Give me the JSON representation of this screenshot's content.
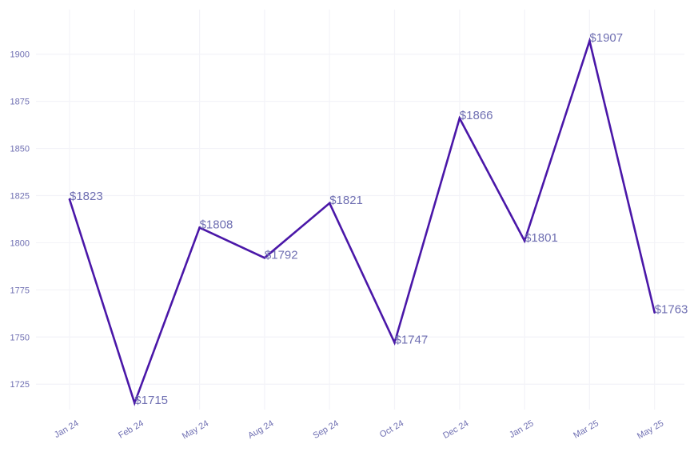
{
  "chart_data": {
    "type": "line",
    "title": "",
    "xlabel": "",
    "ylabel": "",
    "categories": [
      "Jan 24",
      "Feb 24",
      "May 24",
      "Aug 24",
      "Sep 24",
      "Oct 24",
      "Dec 24",
      "Jan 25",
      "Mar 25",
      "May 25"
    ],
    "series": [
      {
        "values": [
          1823,
          1715,
          1808,
          1792,
          1821,
          1747,
          1866,
          1801,
          1907,
          1763
        ],
        "data_labels": [
          "$1823",
          "$1715",
          "$1808",
          "$1792",
          "$1821",
          "$1747",
          "$1866",
          "$1801",
          "$1907",
          "$1763"
        ]
      }
    ],
    "y_ticks": [
      "1725",
      "1750",
      "1775",
      "1800",
      "1825",
      "1850",
      "1875",
      "1900"
    ],
    "ylim": [
      1706,
      1916
    ],
    "grid": true,
    "legend": "none",
    "colors": {
      "line": "#4a17a8",
      "tick_text": "#6f6fb2",
      "data_label_text": "#6f6fb2",
      "grid": "#f3f3f8"
    }
  }
}
